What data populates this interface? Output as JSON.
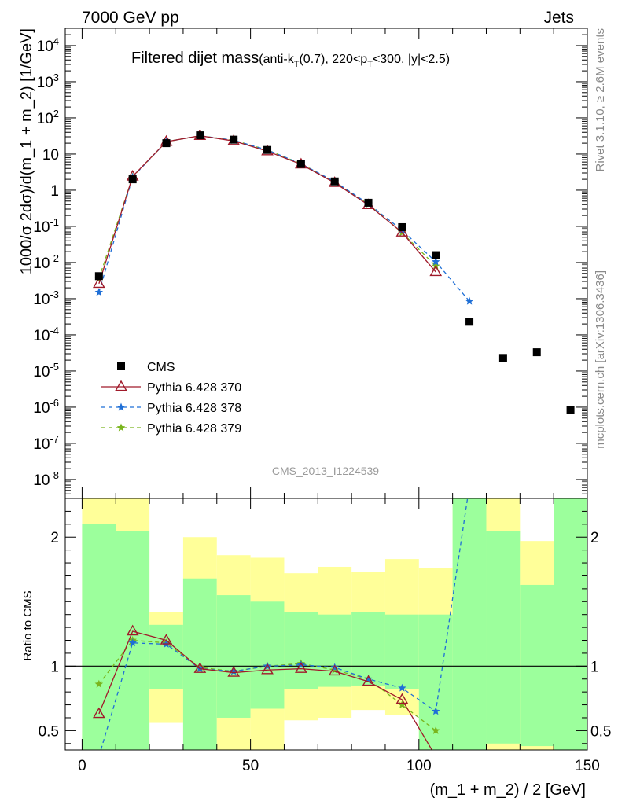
{
  "header": {
    "left": "7000 GeV pp",
    "right": "Jets"
  },
  "side_text": {
    "top": "Rivet 3.1.10, ≥ 2.6M events",
    "bottom": "mcplots.cern.ch [arXiv:1306.3436]"
  },
  "watermark": "CMS_2013_I1224539",
  "colors": {
    "cms": "#000000",
    "p370": "#a01a2a",
    "p378": "#1f6fd6",
    "p379": "#7ab51d",
    "band_green": "#9cff9c",
    "band_yellow": "#ffff99"
  },
  "chart_data": [
    {
      "type": "line",
      "title": "Filtered dijet mass(anti-k_T(0.7), 220<p_T<300, |y|<2.5)",
      "xlabel": "",
      "ylabel": "1000/σ 2dσ)/d(m_1 + m_2) [1/GeV]",
      "yscale": "log",
      "xlim": [
        -5,
        150
      ],
      "ylim": [
        3e-09,
        30000.0
      ],
      "y_ticks": [
        "10^4",
        "10^3",
        "10^2",
        "10",
        "1",
        "10^-1",
        "10^-2",
        "10^-3",
        "10^-4",
        "10^-5",
        "10^-6",
        "10^-7",
        "10^-8"
      ],
      "legend": [
        "CMS",
        "Pythia 6.428 370",
        "Pythia 6.428 378",
        "Pythia 6.428 379"
      ],
      "legend_position": "bottom-left",
      "series": [
        {
          "name": "CMS",
          "x": [
            5,
            15,
            25,
            35,
            45,
            55,
            65,
            75,
            85,
            95,
            105,
            115,
            125,
            135,
            145
          ],
          "y": [
            0.0042,
            2.0,
            20,
            33,
            25,
            13,
            5.3,
            1.75,
            0.45,
            0.095,
            0.016,
            0.00023,
            2.3e-05,
            3.3e-05,
            8.5e-07
          ]
        },
        {
          "name": "Pythia 6.428 370",
          "x": [
            5,
            15,
            25,
            35,
            45,
            55,
            65,
            75,
            85,
            95,
            105
          ],
          "y": [
            0.0026,
            2.4,
            22,
            32,
            23,
            12,
            5.2,
            1.6,
            0.39,
            0.068,
            0.0055
          ]
        },
        {
          "name": "Pythia 6.428 378",
          "x": [
            5,
            15,
            25,
            35,
            45,
            55,
            65,
            75,
            85,
            95,
            105,
            115
          ],
          "y": [
            0.0015,
            2.3,
            22,
            32,
            24,
            13,
            5.4,
            1.72,
            0.42,
            0.078,
            0.0105,
            0.00085
          ]
        },
        {
          "name": "Pythia 6.428 379",
          "x": [
            5,
            15,
            25,
            35,
            45,
            55,
            65,
            75,
            85,
            95,
            105
          ],
          "y": [
            0.0036,
            2.35,
            22,
            32,
            24,
            13,
            5.4,
            1.7,
            0.41,
            0.067,
            0.008
          ]
        }
      ]
    },
    {
      "type": "line",
      "xlabel": "(m_1 + m_2) / 2 [GeV]",
      "ylabel": "Ratio to CMS",
      "xlim": [
        -5,
        150
      ],
      "ylim": [
        0.35,
        2.3
      ],
      "x_ticks": [
        0,
        50,
        100,
        150
      ],
      "y_ticks": [
        0.5,
        1,
        2
      ],
      "bands": [
        {
          "x0": 0,
          "x1": 10,
          "green": [
            0.0,
            2.1
          ],
          "yellow": [
            0.0,
            2.4
          ]
        },
        {
          "x0": 10,
          "x1": 20,
          "green": [
            0.0,
            2.05
          ],
          "yellow": [
            0.0,
            2.4
          ]
        },
        {
          "x0": 20,
          "x1": 30,
          "green": [
            0.82,
            1.32
          ],
          "yellow": [
            0.56,
            1.42
          ]
        },
        {
          "x0": 30,
          "x1": 40,
          "green": [
            0.0,
            1.68
          ],
          "yellow": [
            0.0,
            2.0
          ]
        },
        {
          "x0": 40,
          "x1": 50,
          "green": [
            0.6,
            1.55
          ],
          "yellow": [
            0.0,
            1.86
          ]
        },
        {
          "x0": 50,
          "x1": 60,
          "green": [
            0.67,
            1.5
          ],
          "yellow": [
            0.0,
            1.84
          ]
        },
        {
          "x0": 60,
          "x1": 70,
          "green": [
            0.82,
            1.42
          ],
          "yellow": [
            0.58,
            1.72
          ]
        },
        {
          "x0": 70,
          "x1": 80,
          "green": [
            0.84,
            1.4
          ],
          "yellow": [
            0.6,
            1.77
          ]
        },
        {
          "x0": 80,
          "x1": 90,
          "green": [
            0.85,
            1.42
          ],
          "yellow": [
            0.66,
            1.73
          ]
        },
        {
          "x0": 90,
          "x1": 100,
          "green": [
            0.82,
            1.4
          ],
          "yellow": [
            0.62,
            1.83
          ]
        },
        {
          "x0": 100,
          "x1": 110,
          "green": [
            0.0,
            1.4
          ],
          "yellow": [
            0.0,
            1.76
          ]
        },
        {
          "x0": 110,
          "x1": 120,
          "green": [
            0.0,
            2.4
          ],
          "yellow": [
            0.0,
            2.4
          ]
        },
        {
          "x0": 120,
          "x1": 130,
          "green": [
            0.4,
            2.05
          ],
          "yellow": [
            0.0,
            2.4
          ]
        },
        {
          "x0": 130,
          "x1": 140,
          "green": [
            0.38,
            1.63
          ],
          "yellow": [
            0.0,
            1.97
          ]
        },
        {
          "x0": 140,
          "x1": 150,
          "green": [
            0.0,
            2.4
          ],
          "yellow": [
            0.0,
            2.4
          ]
        }
      ],
      "series": [
        {
          "name": "Pythia 6.428 370",
          "x": [
            5,
            15,
            25,
            35,
            45,
            55,
            65,
            75,
            85,
            95,
            105
          ],
          "y": [
            0.63,
            1.27,
            1.2,
            0.98,
            0.95,
            0.97,
            0.98,
            0.96,
            0.88,
            0.74,
            0.3
          ]
        },
        {
          "name": "Pythia 6.428 378",
          "x": [
            5,
            15,
            25,
            35,
            45,
            55,
            65,
            75,
            85,
            95,
            105,
            115
          ],
          "y": [
            0.3,
            1.18,
            1.17,
            0.98,
            0.96,
            1.0,
            1.01,
            0.99,
            0.9,
            0.83,
            0.65,
            2.4
          ]
        },
        {
          "name": "Pythia 6.428 379",
          "x": [
            5,
            15,
            25,
            35,
            45,
            55,
            65,
            75,
            85,
            95,
            105
          ],
          "y": [
            0.86,
            1.2,
            1.18,
            0.99,
            0.96,
            1.0,
            1.02,
            0.97,
            0.9,
            0.7,
            0.5
          ]
        }
      ]
    }
  ]
}
